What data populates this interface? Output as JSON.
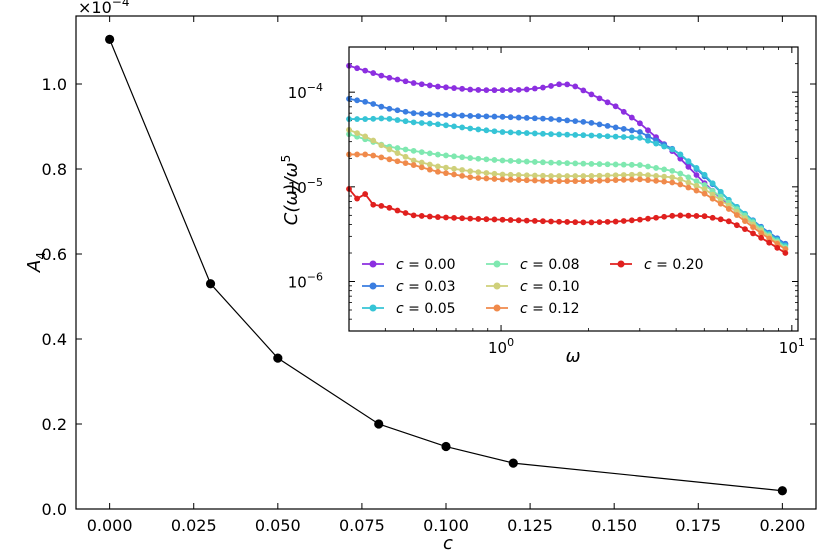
{
  "chart_data": [
    {
      "type": "line",
      "role": "main",
      "xlabel": "c",
      "ylabel": "A_4",
      "ylabel_parts": {
        "base": "A",
        "sub": "4"
      },
      "exponent_label": "×10",
      "exponent_power": "−4",
      "xlim": [
        -0.01,
        0.21
      ],
      "ylim": [
        0.0,
        1.16
      ],
      "xticks": [
        0.0,
        0.025,
        0.05,
        0.075,
        0.1,
        0.125,
        0.15,
        0.175,
        0.2
      ],
      "xtick_labels": [
        "0.000",
        "0.025",
        "0.050",
        "0.075",
        "0.100",
        "0.125",
        "0.150",
        "0.175",
        "0.200"
      ],
      "yticks": [
        0.0,
        0.2,
        0.4,
        0.6,
        0.8,
        1.0
      ],
      "ytick_labels": [
        "0.0",
        "0.2",
        "0.4",
        "0.6",
        "0.8",
        "1.0"
      ],
      "series": [
        {
          "color": "#000000",
          "x": [
            0.0,
            0.03,
            0.05,
            0.08,
            0.1,
            0.12,
            0.2
          ],
          "y": [
            1.105,
            0.53,
            0.355,
            0.2,
            0.147,
            0.108,
            0.043
          ]
        }
      ]
    },
    {
      "type": "line",
      "role": "inset",
      "xlabel": "ω",
      "ylabel": "C(ω)/ω^5",
      "ylabel_parts": {
        "main": "C(ω)/ω",
        "sup": "5"
      },
      "xscale": "log",
      "yscale": "log",
      "xlim": [
        0.3,
        10.5
      ],
      "ylim": [
        3e-07,
        0.0003
      ],
      "xticks": [
        1,
        10
      ],
      "xtick_labels": [
        {
          "base": "10",
          "exp": "0"
        },
        {
          "base": "10",
          "exp": "1"
        }
      ],
      "yticks": [
        1e-06,
        1e-05,
        0.0001
      ],
      "ytick_labels": [
        {
          "base": "10",
          "exp": "−6"
        },
        {
          "base": "10",
          "exp": "−5"
        },
        {
          "base": "10",
          "exp": "−4"
        }
      ],
      "legend_placement": "lower-left",
      "series": [
        {
          "name": "c = 0.00",
          "prefix": "c",
          "value": " = 0.00",
          "color": "#8c2fe0",
          "x": [
            0.3,
            0.35,
            0.4,
            0.5,
            0.6,
            0.7,
            0.8,
            0.9,
            1.0,
            1.2,
            1.4,
            1.6,
            1.75,
            2.0,
            2.5,
            3.0,
            4.0,
            5.0,
            6.0,
            7.0,
            8.0,
            9.5
          ],
          "y": [
            0.00019,
            0.000165,
            0.000145,
            0.000125,
            0.000115,
            0.00011,
            0.000106,
            0.000105,
            0.000105,
            0.000106,
            0.000112,
            0.000122,
            0.00012,
            9.8e-05,
            7e-05,
            4.7e-05,
            2.2e-05,
            1.1e-05,
            6.5e-06,
            4.5e-06,
            3.3e-06,
            2.5e-06
          ]
        },
        {
          "name": "c = 0.03",
          "prefix": "c",
          "value": " = 0.03",
          "color": "#3a7de0",
          "x": [
            0.3,
            0.35,
            0.4,
            0.5,
            0.6,
            0.8,
            1.0,
            1.5,
            2.0,
            3.0,
            4.0,
            5.0,
            6.0,
            7.0,
            8.0,
            9.5
          ],
          "y": [
            8.5e-05,
            7.8e-05,
            6.8e-05,
            6e-05,
            5.8e-05,
            5.6e-05,
            5.5e-05,
            5.2e-05,
            4.8e-05,
            3.8e-05,
            2.4e-05,
            1.3e-05,
            7.5e-06,
            5e-06,
            3.6e-06,
            2.5e-06
          ]
        },
        {
          "name": "c = 0.05",
          "prefix": "c",
          "value": " = 0.05",
          "color": "#36c4d6",
          "x": [
            0.3,
            0.35,
            0.4,
            0.5,
            0.6,
            0.8,
            1.0,
            1.5,
            2.0,
            3.0,
            4.0,
            5.0,
            6.0,
            7.0,
            8.0,
            9.5
          ],
          "y": [
            5.2e-05,
            5.2e-05,
            5.3e-05,
            4.8e-05,
            4.6e-05,
            4.1e-05,
            3.8e-05,
            3.6e-05,
            3.5e-05,
            3.3e-05,
            2.4e-05,
            1.35e-05,
            7.5e-06,
            5e-06,
            3.5e-06,
            2.4e-06
          ]
        },
        {
          "name": "c = 0.08",
          "prefix": "c",
          "value": " = 0.08",
          "color": "#7fe8b0",
          "x": [
            0.3,
            0.35,
            0.4,
            0.5,
            0.6,
            0.8,
            1.0,
            1.5,
            2.0,
            3.0,
            4.0,
            5.0,
            6.0,
            7.0,
            8.0,
            9.5
          ],
          "y": [
            3.6e-05,
            3.1e-05,
            2.7e-05,
            2.4e-05,
            2.2e-05,
            2e-05,
            1.9e-05,
            1.8e-05,
            1.75e-05,
            1.7e-05,
            1.45e-05,
            1.05e-05,
            7e-06,
            4.8e-06,
            3.4e-06,
            2.3e-06
          ]
        },
        {
          "name": "c = 0.10",
          "prefix": "c",
          "value": " = 0.10",
          "color": "#cfd07a",
          "x": [
            0.3,
            0.35,
            0.4,
            0.5,
            0.6,
            0.8,
            1.0,
            1.5,
            2.0,
            3.0,
            4.0,
            5.0,
            6.0,
            7.0,
            8.0,
            9.5
          ],
          "y": [
            4e-05,
            3.3e-05,
            2.6e-05,
            1.9e-05,
            1.65e-05,
            1.45e-05,
            1.35e-05,
            1.3e-05,
            1.3e-05,
            1.35e-05,
            1.25e-05,
            9.5e-06,
            6.5e-06,
            4.5e-06,
            3.3e-06,
            2.2e-06
          ]
        },
        {
          "name": "c = 0.12",
          "prefix": "c",
          "value": " = 0.12",
          "color": "#f08a4b",
          "x": [
            0.3,
            0.35,
            0.4,
            0.5,
            0.6,
            0.8,
            1.0,
            1.5,
            2.0,
            2.5,
            3.0,
            3.5,
            4.0,
            5.0,
            6.0,
            7.0,
            8.0,
            9.5
          ],
          "y": [
            2.2e-05,
            2.2e-05,
            2e-05,
            1.7e-05,
            1.45e-05,
            1.25e-05,
            1.2e-05,
            1.15e-05,
            1.15e-05,
            1.18e-05,
            1.2e-05,
            1.15e-05,
            1.1e-05,
            8.5e-06,
            6e-06,
            4.2e-06,
            3.1e-06,
            2.2e-06
          ]
        },
        {
          "name": "c = 0.20",
          "prefix": "c",
          "value": " = 0.20",
          "color": "#e0201e",
          "x": [
            0.3,
            0.32,
            0.34,
            0.36,
            0.4,
            0.45,
            0.5,
            0.6,
            0.8,
            1.0,
            1.5,
            2.0,
            2.5,
            3.0,
            4.0,
            5.0,
            6.0,
            7.0,
            8.0,
            9.5
          ],
          "y": [
            9.5e-06,
            7.5e-06,
            8.5e-06,
            6.5e-06,
            6.2e-06,
            5.5e-06,
            5e-06,
            4.8e-06,
            4.6e-06,
            4.5e-06,
            4.3e-06,
            4.2e-06,
            4.3e-06,
            4.5e-06,
            5e-06,
            4.9e-06,
            4.4e-06,
            3.5e-06,
            2.8e-06,
            2e-06
          ]
        }
      ]
    }
  ]
}
